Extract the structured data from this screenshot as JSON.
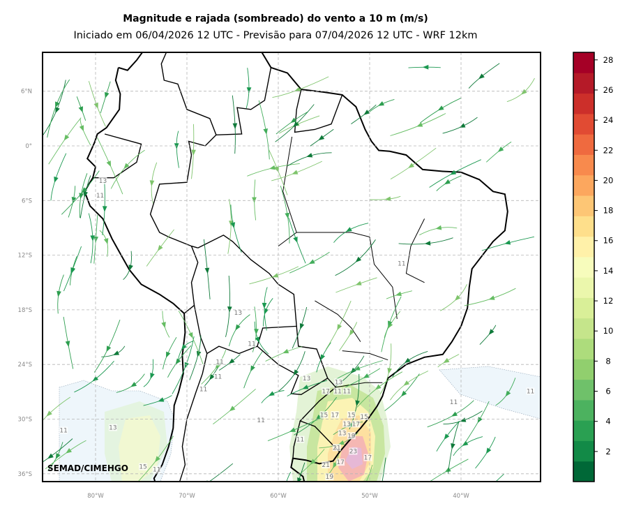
{
  "title": "Magnitude e rajada (sombreado) do vento a 10 m (m/s)",
  "subtitle": "Iniciado em 06/04/2026 12 UTC - Previsão para 07/04/2026 12 UTC - WRF 12km",
  "credit": "SEMAD/CIMEHGO",
  "map": {
    "lon_range": [
      -86,
      -31
    ],
    "lat_range": [
      -37,
      10
    ],
    "lat_ticks": [
      {
        "value": 6,
        "label": "6°N"
      },
      {
        "value": 0,
        "label": "0°"
      },
      {
        "value": -6,
        "label": "6°S"
      },
      {
        "value": -12,
        "label": "12°S"
      },
      {
        "value": -18,
        "label": "18°S"
      },
      {
        "value": -24,
        "label": "24°S"
      },
      {
        "value": -30,
        "label": "30°S"
      },
      {
        "value": -36,
        "label": "36°S"
      }
    ],
    "lon_ticks": [
      {
        "value": -80,
        "label": "80°W"
      },
      {
        "value": -70,
        "label": "70°W"
      },
      {
        "value": -60,
        "label": "60°W"
      },
      {
        "value": -50,
        "label": "50°W"
      },
      {
        "value": -40,
        "label": "40°W"
      }
    ],
    "grid": "dashed",
    "gust_labels": [
      {
        "lon": -79.2,
        "lat": -3.9,
        "text": "13"
      },
      {
        "lon": -79.5,
        "lat": -5.5,
        "text": "11"
      },
      {
        "lon": -64.4,
        "lat": -18.4,
        "text": "13"
      },
      {
        "lon": -62.9,
        "lat": -21.8,
        "text": "11"
      },
      {
        "lon": -66.4,
        "lat": -23.8,
        "text": "11"
      },
      {
        "lon": -66.6,
        "lat": -25.4,
        "text": "11"
      },
      {
        "lon": -68.2,
        "lat": -26.8,
        "text": "11"
      },
      {
        "lon": -56.9,
        "lat": -25.6,
        "text": "13"
      },
      {
        "lon": -53.4,
        "lat": -26.0,
        "text": "13"
      },
      {
        "lon": -54.8,
        "lat": -27.0,
        "text": "17"
      },
      {
        "lon": -53.5,
        "lat": -27.0,
        "text": "11"
      },
      {
        "lon": -52.5,
        "lat": -27.0,
        "text": "11"
      },
      {
        "lon": -46.5,
        "lat": -13.0,
        "text": "11"
      },
      {
        "lon": -40.8,
        "lat": -28.2,
        "text": "11"
      },
      {
        "lon": -32.4,
        "lat": -27.0,
        "text": "11"
      },
      {
        "lon": -61.9,
        "lat": -30.2,
        "text": "11"
      },
      {
        "lon": -83.5,
        "lat": -31.3,
        "text": "11"
      },
      {
        "lon": -78.1,
        "lat": -31.0,
        "text": "13"
      },
      {
        "lon": -55.0,
        "lat": -29.6,
        "text": "15"
      },
      {
        "lon": -53.8,
        "lat": -29.6,
        "text": "17"
      },
      {
        "lon": -52.0,
        "lat": -29.6,
        "text": "15"
      },
      {
        "lon": -50.6,
        "lat": -29.8,
        "text": "15"
      },
      {
        "lon": -52.5,
        "lat": -30.6,
        "text": "13"
      },
      {
        "lon": -51.5,
        "lat": -30.6,
        "text": "17"
      },
      {
        "lon": -53.0,
        "lat": -31.6,
        "text": "13"
      },
      {
        "lon": -52.0,
        "lat": -31.9,
        "text": "19"
      },
      {
        "lon": -57.6,
        "lat": -32.3,
        "text": "11"
      },
      {
        "lon": -53.6,
        "lat": -33.2,
        "text": "21"
      },
      {
        "lon": -51.8,
        "lat": -33.6,
        "text": "23"
      },
      {
        "lon": -50.2,
        "lat": -34.3,
        "text": "17"
      },
      {
        "lon": -53.2,
        "lat": -34.8,
        "text": "17"
      },
      {
        "lon": -54.8,
        "lat": -35.1,
        "text": "21"
      },
      {
        "lon": -54.4,
        "lat": -36.4,
        "text": "19"
      },
      {
        "lon": -74.8,
        "lat": -35.3,
        "text": "15"
      },
      {
        "lon": -73.3,
        "lat": -35.6,
        "text": "11"
      }
    ]
  },
  "colorbar": {
    "ticks": [
      2,
      4,
      6,
      8,
      10,
      12,
      14,
      16,
      18,
      20,
      22,
      24,
      26,
      28
    ],
    "range": [
      0,
      28.5
    ],
    "colors": [
      "#006837",
      "#128a47",
      "#2aa052",
      "#4cb25f",
      "#6fc16a",
      "#91cf6e",
      "#addc7c",
      "#c5e58b",
      "#d9ef98",
      "#ebf7ac",
      "#f7fcbc",
      "#fff1a9",
      "#fedf8b",
      "#fdc675",
      "#fca75e",
      "#f88a4d",
      "#ef6a3f",
      "#e14b33",
      "#cc2f2a",
      "#b51a28",
      "#a50026"
    ]
  },
  "vector_color": "#1a9850"
}
